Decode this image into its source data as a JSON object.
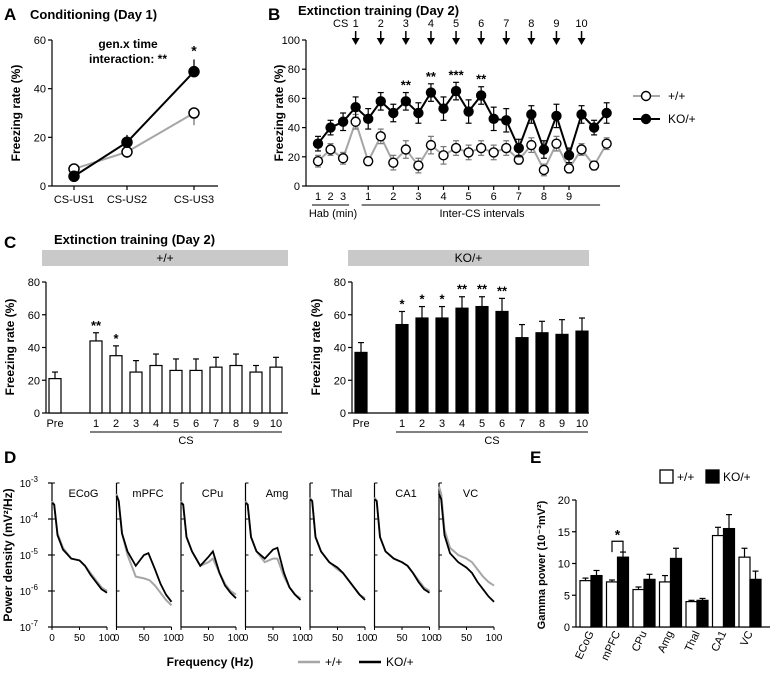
{
  "panels": {
    "A": {
      "letter": "A",
      "title": "Conditioning (Day 1)",
      "annotation_line1": "gen.x time",
      "annotation_line2": "interaction: **"
    },
    "B": {
      "letter": "B",
      "title": "Extinction training (Day 2)",
      "cs_label": "CS",
      "hab_label": "Hab (min)",
      "inter_label": "Inter-CS intervals"
    },
    "C": {
      "letter": "C",
      "title": "Extinction training (Day 2)"
    },
    "D": {
      "letter": "D",
      "xlabel": "Frequency (Hz)"
    },
    "E": {
      "letter": "E"
    }
  },
  "colors": {
    "wt": "#a6a6a6",
    "ko": "#000000",
    "bar_header": "#c9c9c9"
  },
  "chart_data": [
    {
      "id": "A",
      "type": "line",
      "title": "Conditioning (Day 1)",
      "categories": [
        "CS-US1",
        "CS-US2",
        "CS-US3"
      ],
      "ylabel": "Freezing rate (%)",
      "ylim": [
        0,
        60
      ],
      "yticks": [
        0,
        20,
        40,
        60
      ],
      "series": [
        {
          "name": "+/+",
          "values": [
            7,
            14,
            30
          ],
          "errors": [
            2,
            2.5,
            5
          ]
        },
        {
          "name": "KO/+",
          "values": [
            4,
            18,
            47
          ],
          "errors": [
            2,
            3,
            5
          ]
        }
      ],
      "annotations": [
        "*",
        "gen.x time",
        "interaction: **"
      ]
    },
    {
      "id": "B",
      "type": "line",
      "title": "Extinction training (Day 2)",
      "ylabel": "Freezing rate (%)",
      "ylim": [
        0,
        100
      ],
      "yticks": [
        0,
        20,
        40,
        60,
        80,
        100
      ],
      "cs_numbers": [
        "1",
        "2",
        "3",
        "4",
        "5",
        "6",
        "7",
        "8",
        "9",
        "10"
      ],
      "hab_ticks": [
        "1",
        "2",
        "3"
      ],
      "inter_ticks": [
        "1",
        "2",
        "3",
        "4",
        "5",
        "6",
        "7",
        "8",
        "9"
      ],
      "group_labels": [
        "Hab (min)",
        "Inter-CS intervals"
      ],
      "cs_stars": [
        "",
        "",
        "**",
        "**",
        "***",
        "**",
        "",
        "",
        "",
        ""
      ],
      "series": [
        {
          "name": "+/+",
          "values": [
            17,
            25,
            19,
            44,
            17,
            34,
            16,
            25,
            14,
            28,
            21,
            26,
            23,
            26,
            23,
            26,
            18,
            28,
            11,
            29,
            12,
            25,
            14,
            29
          ],
          "errors": [
            4,
            4,
            4,
            5,
            3,
            5,
            5,
            6,
            5,
            6,
            6,
            5,
            5,
            5,
            5,
            5,
            3,
            5,
            4,
            5,
            3,
            4,
            3,
            4
          ]
        },
        {
          "name": "KO/+",
          "values": [
            29,
            40,
            44,
            54,
            46,
            58,
            50,
            58,
            50,
            64,
            53,
            65,
            51,
            62,
            46,
            45,
            26,
            49,
            25,
            48,
            21,
            49,
            40,
            50
          ],
          "errors": [
            5,
            5,
            6,
            7,
            7,
            6,
            6,
            6,
            7,
            6,
            8,
            6,
            8,
            6,
            8,
            8,
            6,
            6,
            6,
            8,
            5,
            6,
            5,
            7
          ]
        }
      ],
      "legend": [
        "+/+",
        "KO/+"
      ]
    },
    {
      "id": "C1",
      "type": "bar",
      "group": "+/+",
      "ylabel": "Freezing rate (%)",
      "ylim": [
        0,
        80
      ],
      "yticks": [
        0,
        20,
        40,
        60,
        80
      ],
      "categories": [
        "Pre",
        "1",
        "2",
        "3",
        "4",
        "5",
        "6",
        "7",
        "8",
        "9",
        "10"
      ],
      "values": [
        21,
        44,
        35,
        25,
        29,
        26,
        26,
        28,
        29,
        25,
        28
      ],
      "errors": [
        4,
        5,
        6,
        7,
        7,
        7,
        7,
        6,
        7,
        4,
        6
      ],
      "stars": [
        "",
        "**",
        "*",
        "",
        "",
        "",
        "",
        "",
        "",
        "",
        ""
      ],
      "xlabel": "CS"
    },
    {
      "id": "C2",
      "type": "bar",
      "group": "KO/+",
      "ylabel": "Freezing rate (%)",
      "ylim": [
        0,
        80
      ],
      "yticks": [
        0,
        20,
        40,
        60,
        80
      ],
      "categories": [
        "Pre",
        "1",
        "2",
        "3",
        "4",
        "5",
        "6",
        "7",
        "8",
        "9",
        "10"
      ],
      "values": [
        37,
        54,
        58,
        58,
        64,
        65,
        62,
        46,
        49,
        48,
        50
      ],
      "errors": [
        6,
        8,
        7,
        7,
        7,
        6,
        8,
        8,
        7,
        9,
        8
      ],
      "stars": [
        "",
        "*",
        "*",
        "*",
        "**",
        "**",
        "**",
        "",
        "",
        "",
        ""
      ],
      "xlabel": "CS"
    },
    {
      "id": "D",
      "type": "line",
      "ylabel": "Power density (mV²/Hz)",
      "xlabel": "Frequency (Hz)",
      "xlim": [
        0,
        100
      ],
      "xticks": [
        0,
        50,
        100
      ],
      "ylim_log10": [
        -7,
        -3
      ],
      "ytick_exponents": [
        -3,
        -4,
        -5,
        -6,
        -7
      ],
      "ytick_base": "10",
      "regions": [
        "ECoG",
        "mPFC",
        "CPu",
        "Amg",
        "Thal",
        "CA1",
        "VC"
      ],
      "legend": [
        "+/+",
        "KO/+"
      ],
      "curves": [
        {
          "region": "ECoG",
          "wt": [
            [
              0,
              -3.5
            ],
            [
              4,
              -3.6
            ],
            [
              10,
              -4.4
            ],
            [
              20,
              -4.8
            ],
            [
              35,
              -5.1
            ],
            [
              50,
              -5.15
            ],
            [
              60,
              -5.3
            ],
            [
              70,
              -5.5
            ],
            [
              80,
              -5.7
            ],
            [
              90,
              -5.9
            ],
            [
              100,
              -6.0
            ]
          ],
          "ko": [
            [
              0,
              -3.55
            ],
            [
              4,
              -3.6
            ],
            [
              10,
              -4.45
            ],
            [
              20,
              -4.85
            ],
            [
              35,
              -5.1
            ],
            [
              50,
              -5.15
            ],
            [
              60,
              -5.3
            ],
            [
              70,
              -5.55
            ],
            [
              80,
              -5.75
            ],
            [
              90,
              -5.95
            ],
            [
              100,
              -6.05
            ]
          ]
        },
        {
          "region": "mPFC",
          "wt": [
            [
              0,
              -3.3
            ],
            [
              4,
              -3.5
            ],
            [
              10,
              -4.4
            ],
            [
              20,
              -5.0
            ],
            [
              35,
              -5.6
            ],
            [
              50,
              -5.65
            ],
            [
              60,
              -5.7
            ],
            [
              70,
              -5.85
            ],
            [
              80,
              -6.05
            ],
            [
              90,
              -6.25
            ],
            [
              100,
              -6.4
            ]
          ],
          "ko": [
            [
              0,
              -3.35
            ],
            [
              4,
              -3.5
            ],
            [
              10,
              -4.4
            ],
            [
              20,
              -4.9
            ],
            [
              35,
              -5.3
            ],
            [
              50,
              -5.0
            ],
            [
              58,
              -4.95
            ],
            [
              70,
              -5.4
            ],
            [
              80,
              -5.8
            ],
            [
              90,
              -6.1
            ],
            [
              100,
              -6.3
            ]
          ]
        },
        {
          "region": "CPu",
          "wt": [
            [
              0,
              -3.5
            ],
            [
              4,
              -3.6
            ],
            [
              10,
              -4.5
            ],
            [
              20,
              -4.9
            ],
            [
              35,
              -5.3
            ],
            [
              50,
              -5.2
            ],
            [
              58,
              -5.1
            ],
            [
              70,
              -5.5
            ],
            [
              80,
              -5.8
            ],
            [
              90,
              -6.0
            ],
            [
              100,
              -6.1
            ]
          ],
          "ko": [
            [
              0,
              -3.55
            ],
            [
              4,
              -3.6
            ],
            [
              10,
              -4.5
            ],
            [
              20,
              -4.9
            ],
            [
              35,
              -5.3
            ],
            [
              50,
              -5.05
            ],
            [
              58,
              -4.9
            ],
            [
              70,
              -5.5
            ],
            [
              80,
              -5.85
            ],
            [
              90,
              -6.05
            ],
            [
              100,
              -6.2
            ]
          ]
        },
        {
          "region": "Amg",
          "wt": [
            [
              0,
              -3.5
            ],
            [
              4,
              -3.6
            ],
            [
              10,
              -4.5
            ],
            [
              20,
              -4.9
            ],
            [
              35,
              -5.2
            ],
            [
              50,
              -5.1
            ],
            [
              58,
              -5.1
            ],
            [
              70,
              -5.6
            ],
            [
              80,
              -5.9
            ],
            [
              90,
              -6.1
            ],
            [
              100,
              -6.2
            ]
          ],
          "ko": [
            [
              0,
              -3.55
            ],
            [
              4,
              -3.6
            ],
            [
              10,
              -4.5
            ],
            [
              20,
              -4.9
            ],
            [
              35,
              -5.1
            ],
            [
              50,
              -4.85
            ],
            [
              58,
              -4.8
            ],
            [
              70,
              -5.5
            ],
            [
              80,
              -5.9
            ],
            [
              90,
              -6.1
            ],
            [
              100,
              -6.25
            ]
          ]
        },
        {
          "region": "Thal",
          "wt": [
            [
              0,
              -3.4
            ],
            [
              4,
              -3.5
            ],
            [
              10,
              -4.5
            ],
            [
              20,
              -4.9
            ],
            [
              35,
              -5.2
            ],
            [
              50,
              -5.4
            ],
            [
              60,
              -5.5
            ],
            [
              70,
              -5.7
            ],
            [
              80,
              -5.9
            ],
            [
              90,
              -6.1
            ],
            [
              100,
              -6.2
            ]
          ],
          "ko": [
            [
              0,
              -3.45
            ],
            [
              4,
              -3.5
            ],
            [
              10,
              -4.5
            ],
            [
              20,
              -4.9
            ],
            [
              35,
              -5.2
            ],
            [
              50,
              -5.35
            ],
            [
              60,
              -5.5
            ],
            [
              70,
              -5.7
            ],
            [
              80,
              -5.9
            ],
            [
              90,
              -6.1
            ],
            [
              100,
              -6.25
            ]
          ]
        },
        {
          "region": "CA1",
          "wt": [
            [
              0,
              -3.4
            ],
            [
              4,
              -3.5
            ],
            [
              10,
              -4.5
            ],
            [
              20,
              -4.9
            ],
            [
              35,
              -5.1
            ],
            [
              50,
              -5.2
            ],
            [
              60,
              -5.3
            ],
            [
              70,
              -5.5
            ],
            [
              80,
              -5.7
            ],
            [
              90,
              -5.9
            ],
            [
              100,
              -6.0
            ]
          ],
          "ko": [
            [
              0,
              -3.45
            ],
            [
              4,
              -3.5
            ],
            [
              10,
              -4.5
            ],
            [
              20,
              -4.9
            ],
            [
              35,
              -5.1
            ],
            [
              50,
              -5.2
            ],
            [
              60,
              -5.3
            ],
            [
              70,
              -5.5
            ],
            [
              80,
              -5.75
            ],
            [
              90,
              -5.95
            ],
            [
              100,
              -6.05
            ]
          ]
        },
        {
          "region": "VC",
          "wt": [
            [
              0,
              -3.1
            ],
            [
              4,
              -3.3
            ],
            [
              10,
              -4.3
            ],
            [
              20,
              -4.8
            ],
            [
              35,
              -5.0
            ],
            [
              50,
              -5.1
            ],
            [
              60,
              -5.2
            ],
            [
              70,
              -5.4
            ],
            [
              80,
              -5.6
            ],
            [
              90,
              -5.75
            ],
            [
              100,
              -5.85
            ]
          ],
          "ko": [
            [
              0,
              -3.3
            ],
            [
              4,
              -3.45
            ],
            [
              10,
              -4.45
            ],
            [
              20,
              -4.95
            ],
            [
              35,
              -5.2
            ],
            [
              50,
              -5.35
            ],
            [
              60,
              -5.5
            ],
            [
              70,
              -5.75
            ],
            [
              80,
              -5.95
            ],
            [
              90,
              -6.15
            ],
            [
              100,
              -6.3
            ]
          ]
        }
      ]
    },
    {
      "id": "E",
      "type": "bar",
      "ylabel": "Gamma power (10⁻³mV²)",
      "ylim": [
        0,
        20
      ],
      "yticks": [
        0,
        5,
        10,
        15,
        20
      ],
      "categories": [
        "ECoG",
        "mPFC",
        "CPu",
        "Amg",
        "Thal",
        "CA1",
        "VC"
      ],
      "legend": [
        "+/+",
        "KO/+"
      ],
      "series": [
        {
          "name": "+/+",
          "values": [
            7.3,
            7.1,
            5.9,
            7.1,
            4.0,
            14.4,
            11.0
          ],
          "errors": [
            0.4,
            0.3,
            0.4,
            1.0,
            0.2,
            1.3,
            1.4
          ]
        },
        {
          "name": "KO/+",
          "values": [
            8.1,
            11.0,
            7.5,
            10.8,
            4.2,
            15.5,
            7.5
          ],
          "errors": [
            0.8,
            0.8,
            0.8,
            1.6,
            0.3,
            2.2,
            1.3
          ]
        }
      ],
      "significance": {
        "category": "mPFC",
        "label": "*"
      }
    }
  ]
}
